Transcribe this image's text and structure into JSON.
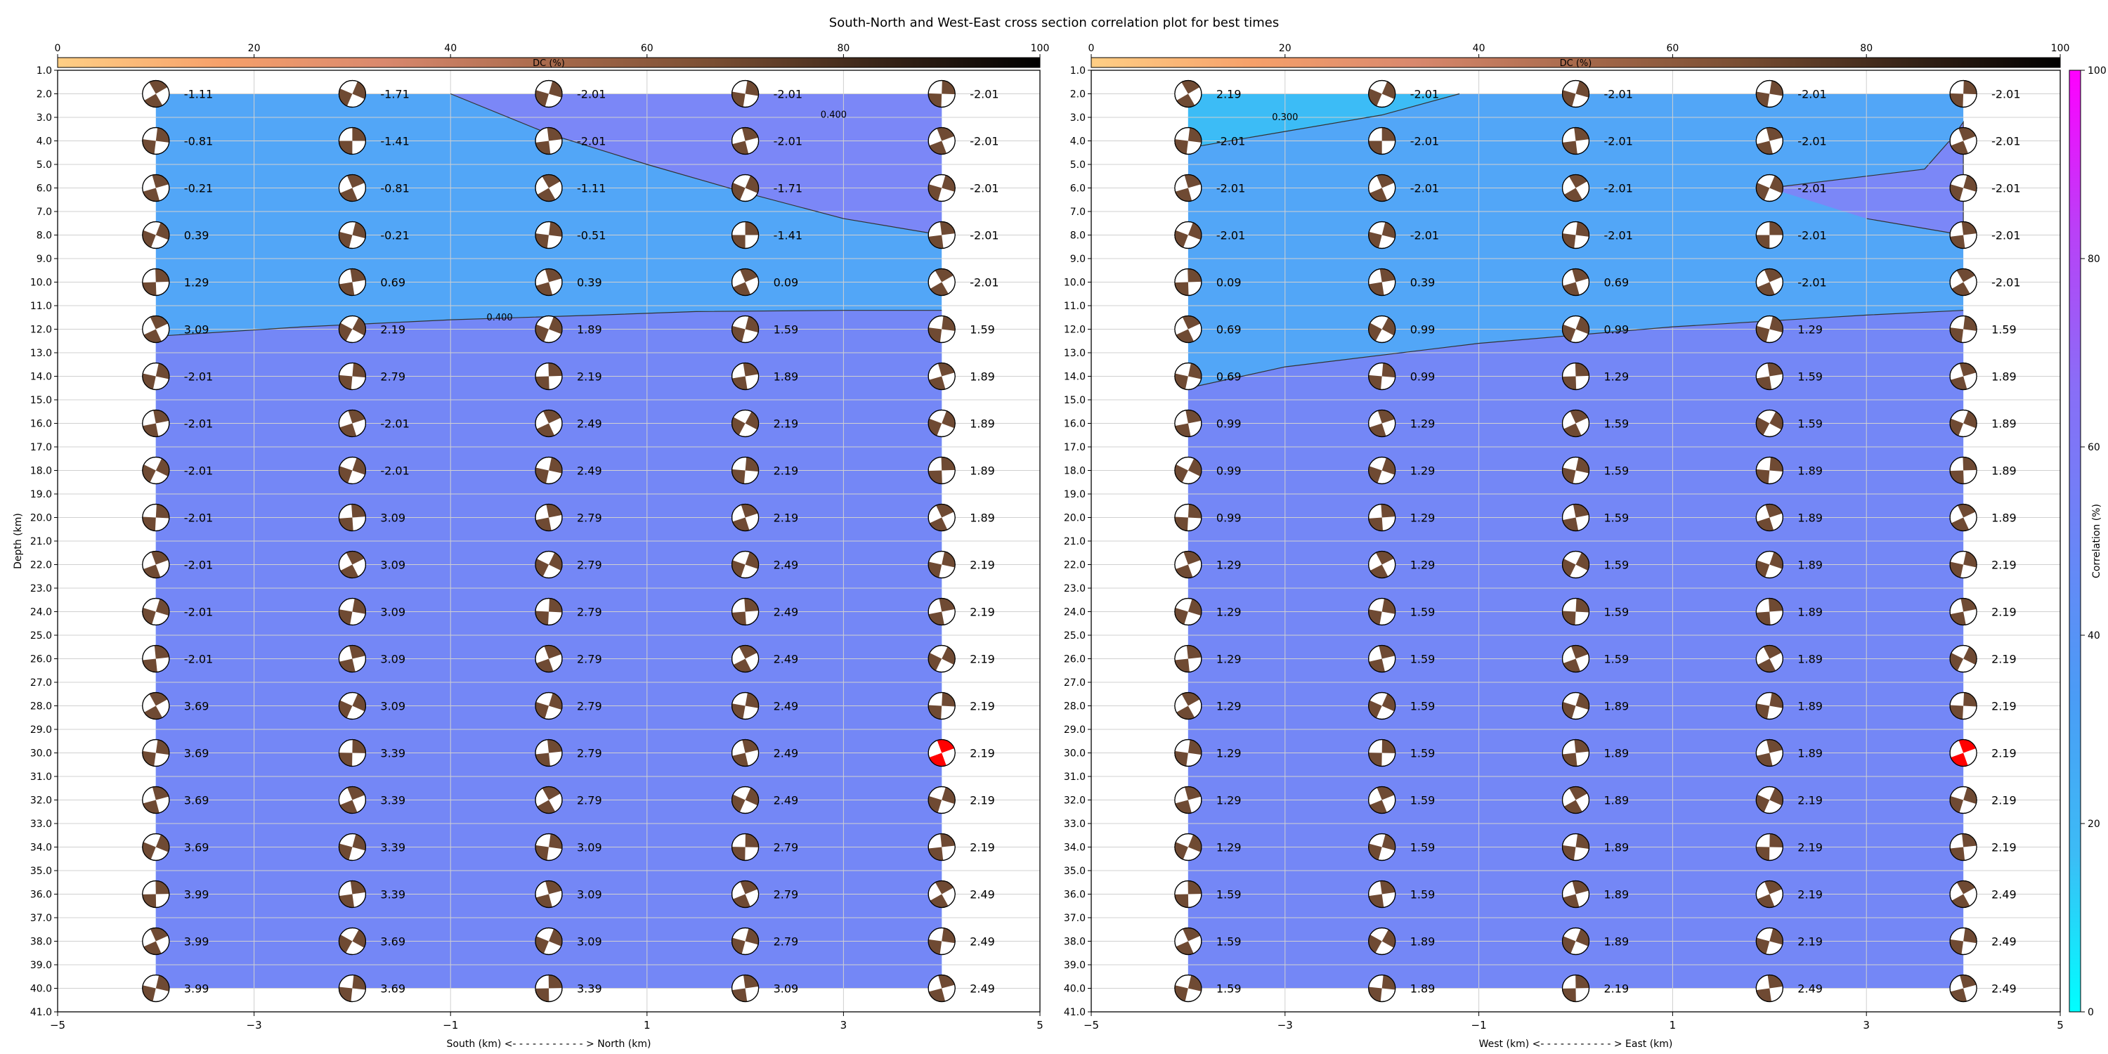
{
  "figure": {
    "title": "South-North and West-East cross section correlation plot for best times"
  },
  "colors": {
    "background_fill": "#52a6f7",
    "main_fill": "#7487f6",
    "upper_fill": "#7b87f7",
    "we_upper_left_fill": "#3cbcf6",
    "contour_line": "#333333",
    "highlight_beachball": "#ff0000",
    "dc_cmap": [
      "#ffcf85",
      "#f6a06a",
      "#d9886d",
      "#a86a4c",
      "#7a4e33",
      "#3a2518",
      "#000000"
    ],
    "corr_cmap": [
      "#00ffff",
      "#3cbcf6",
      "#4a9cf6",
      "#6a85f7",
      "#8a6df7",
      "#bb3ff7",
      "#ff00ff"
    ]
  },
  "shared": {
    "dc_colorbar_label": "DC (%)",
    "dc_ticks": [
      "0",
      "20",
      "40",
      "60",
      "80",
      "100"
    ],
    "depth_label": "Depth (km)",
    "depth_ticks": [
      "1.0",
      "2.0",
      "3.0",
      "4.0",
      "5.0",
      "6.0",
      "7.0",
      "8.0",
      "9.0",
      "10.0",
      "11.0",
      "12.0",
      "13.0",
      "14.0",
      "15.0",
      "16.0",
      "17.0",
      "18.0",
      "19.0",
      "20.0",
      "21.0",
      "22.0",
      "23.0",
      "24.0",
      "25.0",
      "26.0",
      "27.0",
      "28.0",
      "29.0",
      "30.0",
      "31.0",
      "32.0",
      "33.0",
      "34.0",
      "35.0",
      "36.0",
      "37.0",
      "38.0",
      "39.0",
      "40.0",
      "41.0"
    ],
    "x_ticks": [
      "−5",
      "−3",
      "−1",
      "1",
      "3",
      "5"
    ],
    "corr_colorbar_label": "Correlation (%)",
    "corr_ticks": [
      "0",
      "20",
      "40",
      "60",
      "80",
      "100"
    ]
  },
  "chart_data": [
    {
      "type": "heatmap",
      "panel": "South-North",
      "xlabel": "South (km) <- - - - - - - - - - - > North (km)",
      "ylabel": "Depth (km)",
      "xlim": [
        -5,
        5
      ],
      "ylim": [
        41,
        1
      ],
      "x_positions": [
        -4,
        -2,
        0,
        2,
        4
      ],
      "depths": [
        2,
        4,
        6,
        8,
        10,
        12,
        14,
        16,
        18,
        20,
        22,
        24,
        26,
        28,
        30,
        32,
        34,
        36,
        38,
        40
      ],
      "values": [
        [
          "-1.11",
          "-1.71",
          "-2.01",
          "-2.01",
          "-2.01"
        ],
        [
          "-0.81",
          "-1.41",
          "-2.01",
          "-2.01",
          "-2.01"
        ],
        [
          "-0.21",
          "-0.81",
          "-1.11",
          "-1.71",
          "-2.01"
        ],
        [
          "0.39",
          "-0.21",
          "-0.51",
          "-1.41",
          "-2.01"
        ],
        [
          "1.29",
          "0.69",
          "0.39",
          "0.09",
          "-2.01"
        ],
        [
          "3.09",
          "2.19",
          "1.89",
          "1.59",
          "1.59"
        ],
        [
          "-2.01",
          "2.79",
          "2.19",
          "1.89",
          "1.89"
        ],
        [
          "-2.01",
          "-2.01",
          "2.49",
          "2.19",
          "1.89"
        ],
        [
          "-2.01",
          "-2.01",
          "2.49",
          "2.19",
          "1.89"
        ],
        [
          "-2.01",
          "3.09",
          "2.79",
          "2.19",
          "1.89"
        ],
        [
          "-2.01",
          "3.09",
          "2.79",
          "2.49",
          "2.19"
        ],
        [
          "-2.01",
          "3.09",
          "2.79",
          "2.49",
          "2.19"
        ],
        [
          "-2.01",
          "3.09",
          "2.79",
          "2.49",
          "2.19"
        ],
        [
          "3.69",
          "3.09",
          "2.79",
          "2.49",
          "2.19"
        ],
        [
          "3.69",
          "3.39",
          "2.79",
          "2.49",
          "2.19"
        ],
        [
          "3.69",
          "3.39",
          "2.79",
          "2.49",
          "2.19"
        ],
        [
          "3.69",
          "3.39",
          "3.09",
          "2.79",
          "2.19"
        ],
        [
          "3.99",
          "3.39",
          "3.09",
          "2.79",
          "2.49"
        ],
        [
          "3.99",
          "3.69",
          "3.09",
          "2.79",
          "2.49"
        ],
        [
          "3.99",
          "3.69",
          "3.39",
          "3.09",
          "2.49"
        ]
      ],
      "contours": [
        {
          "label": "0.400",
          "label_at": [
            -0.5,
            11.5
          ],
          "points": [
            [
              -4,
              12.3
            ],
            [
              -2.5,
              11.9
            ],
            [
              -1,
              11.6
            ],
            [
              0.5,
              11.4
            ],
            [
              1.5,
              11.25
            ],
            [
              3,
              11.2
            ],
            [
              4,
              11.2
            ]
          ]
        },
        {
          "label": "0.400",
          "label_at": [
            2.9,
            2.9
          ],
          "points": [
            [
              -1,
              2
            ],
            [
              0,
              3.7
            ],
            [
              1,
              5
            ],
            [
              2,
              6.2
            ],
            [
              3,
              7.3
            ],
            [
              4,
              8
            ]
          ]
        }
      ],
      "highlight": {
        "x": 4,
        "depth": 30
      }
    },
    {
      "type": "heatmap",
      "panel": "West-East",
      "xlabel": "West (km) <- - - - - - - - - - - > East (km)",
      "ylabel": "",
      "xlim": [
        -5,
        5
      ],
      "ylim": [
        41,
        1
      ],
      "x_positions": [
        -4,
        -2,
        0,
        2,
        4
      ],
      "depths": [
        2,
        4,
        6,
        8,
        10,
        12,
        14,
        16,
        18,
        20,
        22,
        24,
        26,
        28,
        30,
        32,
        34,
        36,
        38,
        40
      ],
      "values": [
        [
          "2.19",
          "-2.01",
          "-2.01",
          "-2.01",
          "-2.01"
        ],
        [
          "-2.01",
          "-2.01",
          "-2.01",
          "-2.01",
          "-2.01"
        ],
        [
          "-2.01",
          "-2.01",
          "-2.01",
          "-2.01",
          "-2.01"
        ],
        [
          "-2.01",
          "-2.01",
          "-2.01",
          "-2.01",
          "-2.01"
        ],
        [
          "0.09",
          "0.39",
          "0.69",
          "-2.01",
          "-2.01"
        ],
        [
          "0.69",
          "0.99",
          "0.99",
          "1.29",
          "1.59"
        ],
        [
          "0.69",
          "0.99",
          "1.29",
          "1.59",
          "1.89"
        ],
        [
          "0.99",
          "1.29",
          "1.59",
          "1.59",
          "1.89"
        ],
        [
          "0.99",
          "1.29",
          "1.59",
          "1.89",
          "1.89"
        ],
        [
          "0.99",
          "1.29",
          "1.59",
          "1.89",
          "1.89"
        ],
        [
          "1.29",
          "1.29",
          "1.59",
          "1.89",
          "2.19"
        ],
        [
          "1.29",
          "1.59",
          "1.59",
          "1.89",
          "2.19"
        ],
        [
          "1.29",
          "1.59",
          "1.59",
          "1.89",
          "2.19"
        ],
        [
          "1.29",
          "1.59",
          "1.89",
          "1.89",
          "2.19"
        ],
        [
          "1.29",
          "1.59",
          "1.89",
          "1.89",
          "2.19"
        ],
        [
          "1.29",
          "1.59",
          "1.89",
          "2.19",
          "2.19"
        ],
        [
          "1.29",
          "1.59",
          "1.89",
          "2.19",
          "2.19"
        ],
        [
          "1.59",
          "1.59",
          "1.89",
          "2.19",
          "2.49"
        ],
        [
          "1.59",
          "1.89",
          "1.89",
          "2.19",
          "2.49"
        ],
        [
          "1.59",
          "1.89",
          "2.19",
          "2.49",
          "2.49"
        ]
      ],
      "contours": [
        {
          "label": "0.300",
          "label_at": [
            -3,
            3
          ],
          "points": [
            [
              -4,
              4.3
            ],
            [
              -3,
              3.6
            ],
            [
              -2,
              2.9
            ],
            [
              -1.2,
              2
            ]
          ]
        },
        {
          "label": "",
          "label_at": null,
          "points": [
            [
              -4,
              14.5
            ],
            [
              -3,
              13.6
            ],
            [
              -1,
              12.6
            ],
            [
              1,
              11.9
            ],
            [
              3,
              11.4
            ],
            [
              4,
              11.2
            ]
          ]
        }
      ],
      "upper_right_region": [
        [
          2,
          6
        ],
        [
          3.6,
          5.2
        ],
        [
          3.9,
          3.8
        ],
        [
          4,
          3.2
        ],
        [
          4,
          8
        ],
        [
          3,
          7.3
        ]
      ],
      "highlight": {
        "x": 4,
        "depth": 30
      }
    }
  ]
}
